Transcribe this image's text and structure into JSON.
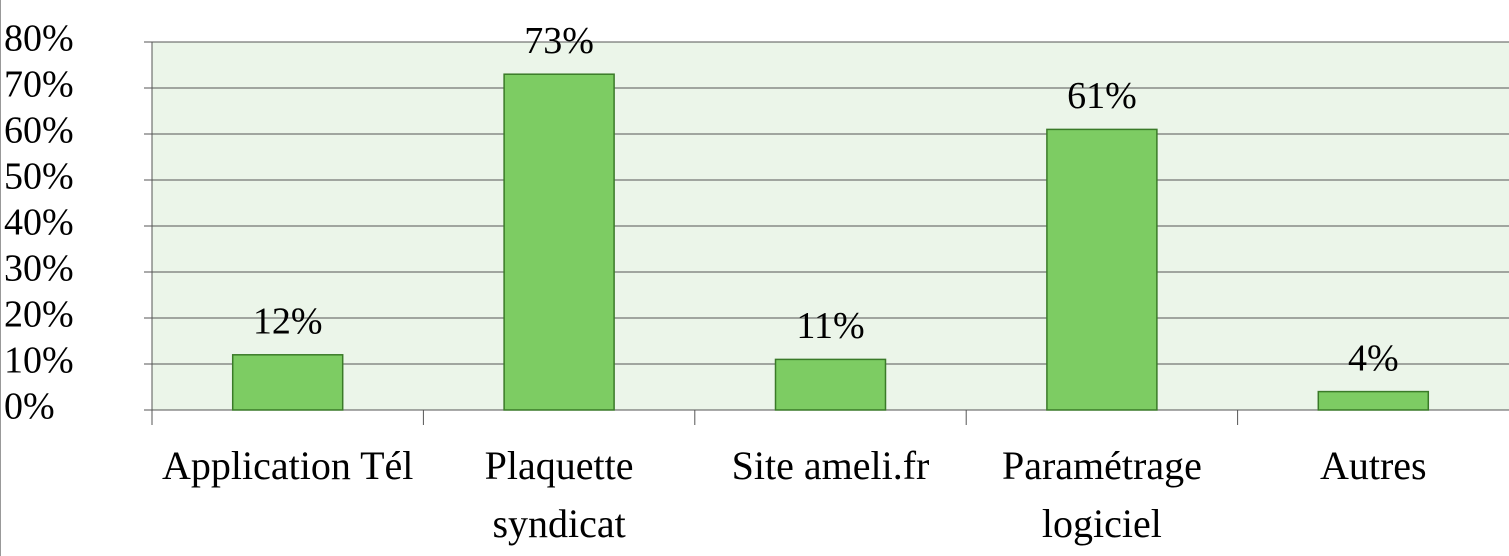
{
  "chart_data": {
    "type": "bar",
    "categories": [
      "Application Tél",
      "Plaquette syndicat",
      "Site ameli.fr",
      "Paramétrage logiciel",
      "Autres"
    ],
    "values": [
      12,
      73,
      11,
      61,
      4
    ],
    "value_labels": [
      "12%",
      "73%",
      "11%",
      "61%",
      "4%"
    ],
    "color": "#7dcc63",
    "ylim": [
      0,
      80
    ],
    "yticks": [
      {
        "value": 0,
        "label": "0%"
      },
      {
        "value": 10,
        "label": "10%"
      },
      {
        "value": 20,
        "label": "20%"
      },
      {
        "value": 30,
        "label": "30%"
      },
      {
        "value": 40,
        "label": "40%"
      },
      {
        "value": 50,
        "label": "50%"
      },
      {
        "value": 60,
        "label": "60%"
      },
      {
        "value": 70,
        "label": "70%"
      },
      {
        "value": 80,
        "label": "80%"
      }
    ],
    "grid": true
  }
}
